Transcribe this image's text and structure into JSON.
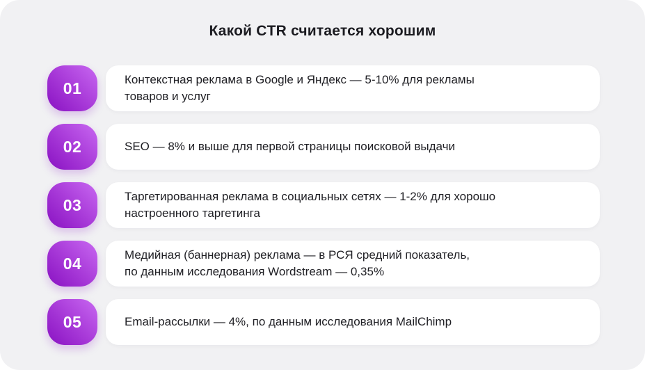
{
  "title": "Какой CTR считается хорошим",
  "colors": {
    "page_bg": "#FFFFFF",
    "panel_bg": "#F1F1F3",
    "card_bg": "#FFFFFF",
    "badge_gradient_start": "#8912C2",
    "badge_gradient_mid": "#A93BD9",
    "badge_gradient_end": "#C868F1",
    "badge_text": "#FFFFFF",
    "text": "#202025"
  },
  "items": [
    {
      "number": "01",
      "text": "Контекстная реклама в Google и Яндекс — 5-10% для рекламы\nтоваров и услуг"
    },
    {
      "number": "02",
      "text": "SEO — 8% и выше для первой страницы поисковой выдачи"
    },
    {
      "number": "03",
      "text": "Таргетированная реклама в социальных сетях — 1-2% для хорошо\nнастроенного таргетинга"
    },
    {
      "number": "04",
      "text": "Медийная (баннерная) реклама — в РСЯ средний показатель,\nпо данным исследования Wordstream — 0,35%"
    },
    {
      "number": "05",
      "text": "Email-рассылки — 4%, по данным исследования MailChimp"
    }
  ]
}
